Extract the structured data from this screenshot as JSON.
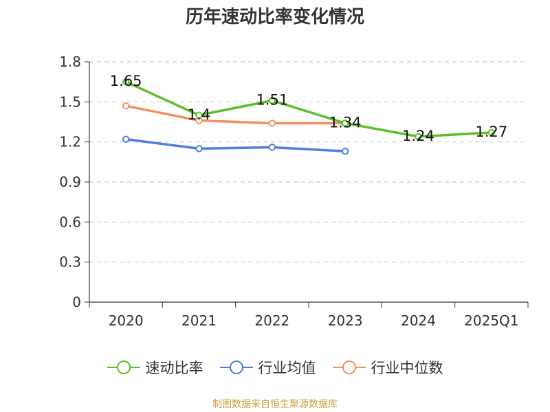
{
  "chart_data": {
    "type": "line",
    "title": "历年速动比率变化情况",
    "categories": [
      "2020",
      "2021",
      "2022",
      "2023",
      "2024",
      "2025Q1"
    ],
    "ylim": [
      0,
      1.8
    ],
    "yticks": [
      "0",
      "0.3",
      "0.6",
      "0.9",
      "1.2",
      "1.5",
      "1.8"
    ],
    "grid": true,
    "legend_position": "bottom",
    "series": [
      {
        "name": "速动比率",
        "color": "#5cbf2a",
        "values": [
          1.65,
          1.4,
          1.51,
          1.34,
          1.24,
          1.27
        ],
        "labels": [
          "1.65",
          "1.4",
          "1.51",
          "1.34",
          "1.24",
          "1.27"
        ]
      },
      {
        "name": "行业均值",
        "color": "#4f7fd8",
        "values": [
          1.22,
          1.15,
          1.16,
          1.13,
          null,
          null
        ]
      },
      {
        "name": "行业中位数",
        "color": "#f39061",
        "values": [
          1.47,
          1.36,
          1.34,
          1.34,
          null,
          null
        ]
      }
    ]
  },
  "source": "制图数据来自恒生聚源数据库"
}
